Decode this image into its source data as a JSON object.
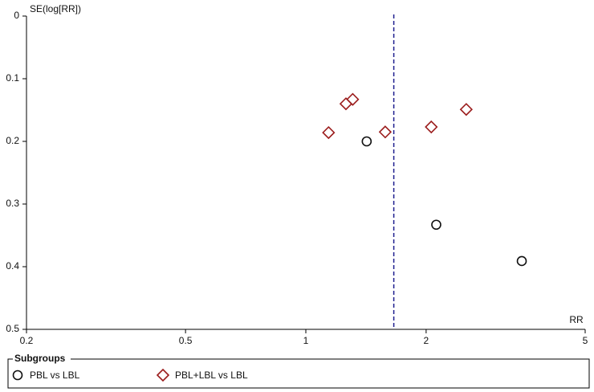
{
  "chart_data": {
    "type": "scatter",
    "y_label": "SE(log[RR])",
    "x_label": "RR",
    "xscale": "log",
    "yinvert": true,
    "xlim": [
      0.2,
      5
    ],
    "xticks": [
      0.2,
      0.5,
      1,
      2,
      5
    ],
    "ylim": [
      0,
      0.5
    ],
    "yticks": [
      0,
      0.1,
      0.2,
      0.3,
      0.4,
      0.5
    ],
    "vline": {
      "x": 1.66,
      "color": "#1f1f8f"
    },
    "legend_title": "Subgroups",
    "series": [
      {
        "name": "PBL vs LBL",
        "color": "#111111",
        "marker": "circle",
        "x": [
          1.42,
          2.12,
          3.47
        ],
        "y": [
          0.2,
          0.333,
          0.391
        ]
      },
      {
        "name": "PBL+LBL vs LBL",
        "color": "#9b1c1c",
        "marker": "diamond",
        "x": [
          1.14,
          1.26,
          1.31,
          1.58,
          2.06,
          2.52
        ],
        "y": [
          0.186,
          0.14,
          0.133,
          0.185,
          0.177,
          0.149
        ]
      }
    ]
  }
}
